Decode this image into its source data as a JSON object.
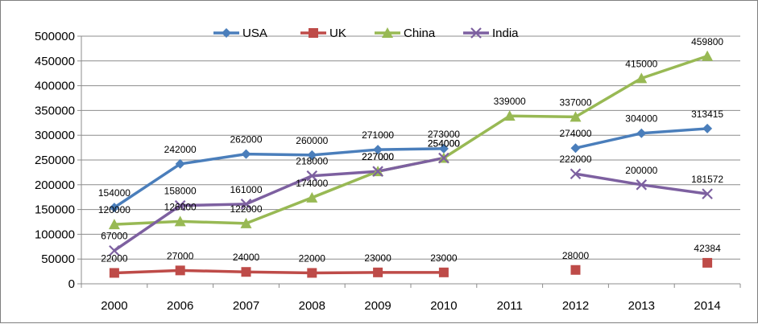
{
  "chart_data": {
    "type": "line",
    "categories": [
      "2000",
      "2006",
      "2007",
      "2008",
      "2009",
      "2010",
      "2011",
      "2012",
      "2013",
      "2014"
    ],
    "y_ticks": [
      "0",
      "50000",
      "100000",
      "150000",
      "200000",
      "250000",
      "300000",
      "350000",
      "400000",
      "450000",
      "500000"
    ],
    "ylim": [
      0,
      500000
    ],
    "grid": "horizontal",
    "legend_position": "top",
    "series": [
      {
        "name": "USA",
        "color": "#4a7ebb",
        "marker": "diamond",
        "values": [
          154000,
          242000,
          262000,
          260000,
          271000,
          273000,
          null,
          274000,
          304000,
          313415
        ],
        "labels": [
          "154000",
          "242000",
          "262000",
          "260000",
          "271000",
          "273000",
          "",
          "274000",
          "304000",
          "313415"
        ]
      },
      {
        "name": "UK",
        "color": "#be4b48",
        "marker": "square",
        "values": [
          22000,
          27000,
          24000,
          22000,
          23000,
          23000,
          null,
          28000,
          null,
          42384
        ],
        "labels": [
          "22000",
          "27000",
          "24000",
          "22000",
          "23000",
          "23000",
          "",
          "28000",
          "",
          "42384"
        ]
      },
      {
        "name": "China",
        "color": "#98b954",
        "marker": "triangle",
        "values": [
          120000,
          126000,
          122000,
          174000,
          227000,
          254000,
          339000,
          337000,
          415000,
          459800
        ],
        "labels": [
          "120000",
          "126000",
          "122000",
          "174000",
          "227000",
          "254000",
          "339000",
          "337000",
          "415000",
          "459800"
        ]
      },
      {
        "name": "India",
        "color": "#7d60a0",
        "marker": "x",
        "values": [
          67000,
          158000,
          161000,
          218000,
          227000,
          254000,
          null,
          222000,
          200000,
          181572
        ],
        "labels": [
          "67000",
          "158000",
          "161000",
          "218000",
          "227000",
          "254000",
          "",
          "222000",
          "200000",
          "181572"
        ]
      }
    ]
  }
}
